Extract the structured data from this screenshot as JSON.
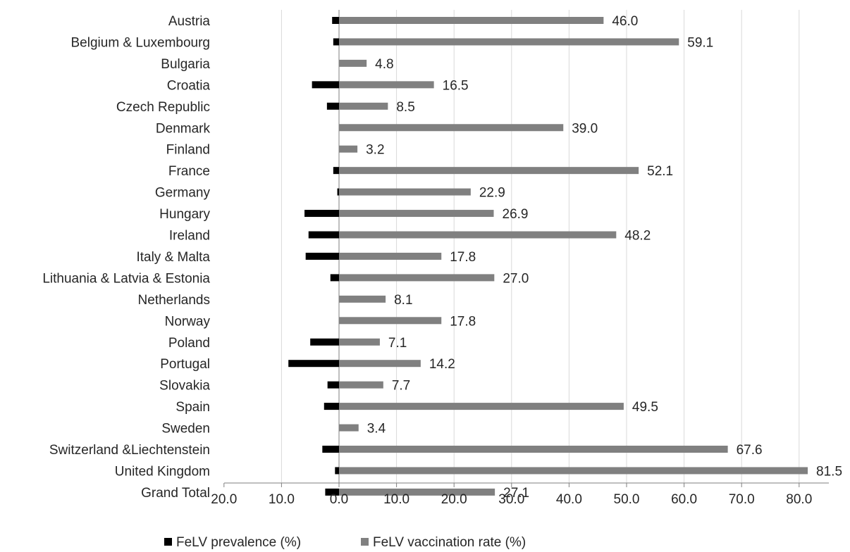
{
  "chart_data": {
    "type": "bar",
    "orientation": "horizontal",
    "categories": [
      "Austria",
      "Belgium & Luxembourg",
      "Bulgaria",
      "Croatia",
      "Czech Republic",
      "Denmark",
      "Finland",
      "France",
      "Germany",
      "Hungary",
      "Ireland",
      "Italy & Malta",
      "Lithuania & Latvia & Estonia",
      "Netherlands",
      "Norway",
      "Poland",
      "Portugal",
      "Slovakia",
      "Spain",
      "Sweden",
      "Switzerland &Liechtenstein",
      "United Kingdom",
      "Grand Total"
    ],
    "series": [
      {
        "name": "FeLV prevalence (%)",
        "color": "#000000",
        "direction": "negative-side",
        "values": [
          1.2,
          1.0,
          0.0,
          4.7,
          2.1,
          0.0,
          0.0,
          1.0,
          0.3,
          6.0,
          5.3,
          5.8,
          1.5,
          0.0,
          0.0,
          5.0,
          8.8,
          2.0,
          2.6,
          0.0,
          2.9,
          0.7,
          2.4
        ]
      },
      {
        "name": "FeLV vaccination rate (%)",
        "color": "#808080",
        "values": [
          46.0,
          59.1,
          4.8,
          16.5,
          8.5,
          39.0,
          3.2,
          52.1,
          22.9,
          26.9,
          48.2,
          17.8,
          27.0,
          8.1,
          17.8,
          7.1,
          14.2,
          7.7,
          49.5,
          3.4,
          67.6,
          81.5,
          27.1
        ]
      }
    ],
    "data_labels": [
      "46.0",
      "59.1",
      "4.8",
      "16.5",
      "8.5",
      "39.0",
      "3.2",
      "52.1",
      "22.9",
      "26.9",
      "48.2",
      "17.8",
      "27.0",
      "8.1",
      "17.8",
      "7.1",
      "14.2",
      "7.7",
      "49.5",
      "3.4",
      "67.6",
      "81.5",
      "27.1"
    ],
    "x_ticks": [
      "20.0",
      "10.0",
      "0.0",
      "10.0",
      "20.0",
      "30.0",
      "40.0",
      "50.0",
      "60.0",
      "70.0",
      "80.0"
    ],
    "xlim": [
      -20,
      85
    ],
    "title": "",
    "xlabel": "",
    "ylabel": "",
    "grid": "vertical",
    "legend_position": "bottom"
  }
}
